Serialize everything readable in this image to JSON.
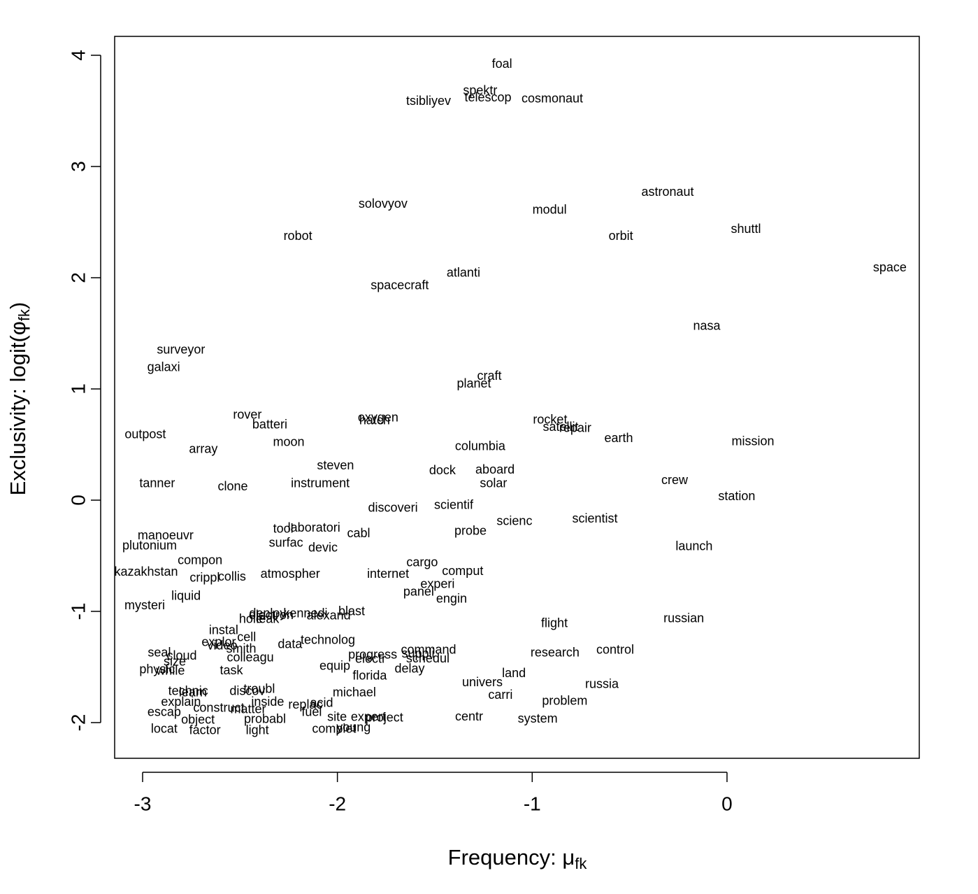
{
  "chart_data": {
    "type": "scatter",
    "x_label": [
      "Frequency: μ",
      "fk"
    ],
    "y_label": [
      "Exclusivity: logit(φ",
      "fk",
      ")"
    ],
    "xlim": [
      -3.1435,
      0.987
    ],
    "ylim": [
      -2.321,
      4.17
    ],
    "xticks": [
      -3,
      -2,
      -1,
      0
    ],
    "yticks": [
      -2,
      -1,
      0,
      1,
      2,
      3,
      4
    ],
    "color": "#000000",
    "labels": [
      "foal",
      "spektr",
      "telescop",
      "tsibliyev",
      "cosmonaut",
      "astronaut",
      "solovyov",
      "modul",
      "shuttl",
      "robot",
      "orbit",
      "atlanti",
      "space",
      "spacecraft",
      "nasa",
      "surveyor",
      "galaxi",
      "craft",
      "planet",
      "rover",
      "oxygen",
      "hatch",
      "rocket",
      "batteri",
      "satellit",
      "repair",
      "outpost",
      "earth",
      "mission",
      "moon",
      "columbia",
      "array",
      "steven",
      "dock",
      "aboard",
      "crew",
      "tanner",
      "instrument",
      "solar",
      "clone",
      "station",
      "discoveri",
      "scientif",
      "scientist",
      "scienc",
      "tool",
      "laboratori",
      "probe",
      "cabl",
      "manoeuvr",
      "surfac",
      "plutonium",
      "launch",
      "devic",
      "compon",
      "cargo",
      "comput",
      "kazakhstan",
      "atmospher",
      "internet",
      "crippl",
      "collis",
      "experi",
      "panel",
      "liquid",
      "engin",
      "mysteri",
      "blast",
      "russian",
      "alexand",
      "kennedi",
      "deploy",
      "electron",
      "hole",
      "leak",
      "flight",
      "instal",
      "cell",
      "explor",
      "data",
      "technolog",
      "video",
      "smith",
      "seal",
      "command",
      "suppli",
      "research",
      "control",
      "cloud",
      "progress",
      "colleagu",
      "electr",
      "schedul",
      "size",
      "equip",
      "physic",
      "while",
      "task",
      "delay",
      "land",
      "florida",
      "univers",
      "russia",
      "technic",
      "learn",
      "discov",
      "troubl",
      "michael",
      "carri",
      "explain",
      "inside",
      "replac",
      "acid",
      "problem",
      "construct",
      "matter",
      "escap",
      "fuel",
      "object",
      "site",
      "expert",
      "project",
      "centr",
      "system",
      "probabl",
      "locat",
      "factor",
      "light",
      "complet",
      "young"
    ],
    "x": [
      -1.155,
      -1.267,
      -1.227,
      -1.532,
      -0.897,
      -0.305,
      -1.766,
      -0.911,
      0.097,
      -2.203,
      -0.545,
      -1.353,
      0.836,
      -1.68,
      -0.104,
      -2.803,
      -2.892,
      -1.22,
      -1.299,
      -2.462,
      -1.791,
      -1.809,
      -0.908,
      -2.347,
      -0.854,
      -0.779,
      -2.986,
      -0.556,
      0.133,
      -2.25,
      -1.267,
      -2.688,
      -2.01,
      -1.461,
      -1.191,
      -0.269,
      -2.925,
      -2.088,
      -1.199,
      -2.537,
      0.05,
      -1.715,
      -1.403,
      -0.678,
      -1.091,
      -2.278,
      -2.12,
      -1.317,
      -1.891,
      -2.882,
      -2.264,
      -2.964,
      -0.169,
      -2.074,
      -2.705,
      -1.565,
      -1.357,
      -2.982,
      -2.242,
      -1.74,
      -2.681,
      -2.541,
      -1.486,
      -1.583,
      -2.777,
      -1.414,
      -2.989,
      -1.927,
      -0.222,
      -2.045,
      -2.164,
      -2.358,
      -2.34,
      -2.444,
      -2.358,
      -0.886,
      -2.584,
      -2.466,
      -2.609,
      -2.243,
      -2.049,
      -2.591,
      -2.494,
      -2.914,
      -1.532,
      -1.586,
      -0.883,
      -0.574,
      -2.799,
      -1.819,
      -2.447,
      -1.83,
      -1.536,
      -2.835,
      -2.013,
      -2.925,
      -2.857,
      -2.544,
      -1.629,
      -1.094,
      -1.834,
      -1.256,
      -0.642,
      -2.766,
      -2.742,
      -2.462,
      -2.401,
      -1.913,
      -1.163,
      -2.803,
      -2.358,
      -2.164,
      -2.081,
      -0.833,
      -2.609,
      -2.458,
      -2.889,
      -2.132,
      -2.716,
      -2.002,
      -1.841,
      -1.759,
      -1.324,
      -0.972,
      -2.372,
      -2.889,
      -2.68,
      -2.411,
      -2.017,
      -1.917
    ],
    "values": [
      3.918,
      3.679,
      3.616,
      3.585,
      3.604,
      2.767,
      2.66,
      2.604,
      2.434,
      2.371,
      2.371,
      2.038,
      2.088,
      1.925,
      1.56,
      1.346,
      1.189,
      1.113,
      1.044,
      0.761,
      0.736,
      0.711,
      0.717,
      0.673,
      0.654,
      0.642,
      0.585,
      0.553,
      0.522,
      0.516,
      0.478,
      0.453,
      0.308,
      0.264,
      0.27,
      0.176,
      0.145,
      0.145,
      0.145,
      0.119,
      0.031,
      -0.075,
      -0.05,
      -0.17,
      -0.195,
      -0.264,
      -0.252,
      -0.283,
      -0.302,
      -0.321,
      -0.39,
      -0.415,
      -0.421,
      -0.434,
      -0.547,
      -0.566,
      -0.642,
      -0.648,
      -0.667,
      -0.667,
      -0.704,
      -0.692,
      -0.761,
      -0.83,
      -0.868,
      -0.893,
      -0.95,
      -1.006,
      -1.069,
      -1.044,
      -1.025,
      -1.025,
      -1.038,
      -1.075,
      -1.075,
      -1.113,
      -1.176,
      -1.239,
      -1.283,
      -1.302,
      -1.264,
      -1.314,
      -1.34,
      -1.377,
      -1.352,
      -1.384,
      -1.377,
      -1.352,
      -1.403,
      -1.396,
      -1.421,
      -1.434,
      -1.428,
      -1.459,
      -1.497,
      -1.528,
      -1.541,
      -1.535,
      -1.522,
      -1.56,
      -1.585,
      -1.642,
      -1.66,
      -1.723,
      -1.736,
      -1.723,
      -1.704,
      -1.736,
      -1.755,
      -1.818,
      -1.818,
      -1.843,
      -1.83,
      -1.811,
      -1.874,
      -1.887,
      -1.912,
      -1.912,
      -1.981,
      -1.956,
      -1.956,
      -1.962,
      -1.95,
      -1.969,
      -1.975,
      -2.063,
      -2.075,
      -2.075,
      -2.063,
      -2.05
    ]
  }
}
